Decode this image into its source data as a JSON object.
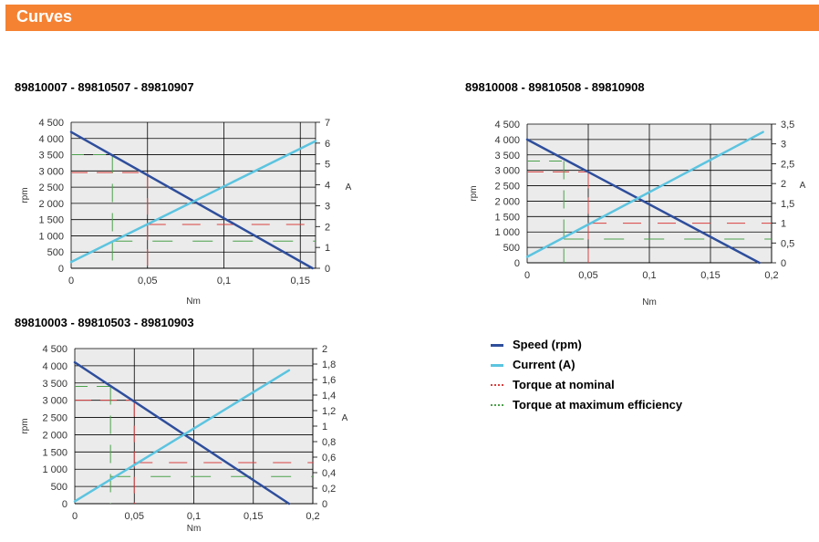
{
  "header": {
    "title": "Curves"
  },
  "colors": {
    "banner": "#F58232",
    "speed": "#2E4E9C",
    "current": "#5BC4E0",
    "nominal": "#D94040",
    "efficiency": "#4CA24C",
    "plot_bg": "#EBEBEB",
    "grid": "#000000"
  },
  "legend": {
    "items": [
      {
        "label": "Speed (rpm)",
        "color": "#2E4E9C",
        "style": "solid"
      },
      {
        "label": "Current (A)",
        "color": "#5BC4E0",
        "style": "solid"
      },
      {
        "label": "Torque at nominal",
        "color": "#D94040",
        "style": "dashed"
      },
      {
        "label": "Torque at maximum efficiency",
        "color": "#4CA24C",
        "style": "dashed"
      }
    ]
  },
  "chart_data": [
    {
      "type": "line",
      "title": "89810007 - 89810507 - 89810907",
      "xlabel": "Nm",
      "ylabel": "rpm",
      "y2label": "A",
      "xlim": [
        0,
        0.16
      ],
      "xticks": [
        0,
        0.05,
        0.1,
        0.15
      ],
      "xtick_labels": [
        "0",
        "0,05",
        "0,1",
        "0,15"
      ],
      "ylim": [
        0,
        4500
      ],
      "yticks": [
        0,
        500,
        1000,
        1500,
        2000,
        2500,
        3000,
        3500,
        4000,
        4500
      ],
      "ytick_labels": [
        "0",
        "500",
        "1 000",
        "1 500",
        "2 000",
        "2 500",
        "3 000",
        "3 500",
        "4 000",
        "4 500"
      ],
      "y2lim": [
        0,
        7
      ],
      "y2ticks": [
        0,
        1,
        2,
        3,
        4,
        5,
        6,
        7
      ],
      "y2tick_labels": [
        "0",
        "1",
        "2",
        "3",
        "4",
        "5",
        "6",
        "7"
      ],
      "grid": true,
      "series": [
        {
          "name": "Speed (rpm)",
          "axis": "left",
          "x": [
            0,
            0.158
          ],
          "y": [
            4200,
            0
          ]
        },
        {
          "name": "Current (A)",
          "axis": "right",
          "x": [
            0,
            0.16
          ],
          "y": [
            0.3,
            6.1
          ]
        }
      ],
      "nominal": {
        "torque": 0.05,
        "speed": 2950,
        "current": 2.1
      },
      "max_efficiency": {
        "torque": 0.027,
        "speed": 3500,
        "current": 1.3
      }
    },
    {
      "type": "line",
      "title": "89810008 - 89810508 - 89810908",
      "xlabel": "Nm",
      "ylabel": "rpm",
      "y2label": "A",
      "xlim": [
        0,
        0.2
      ],
      "xticks": [
        0,
        0.05,
        0.1,
        0.15,
        0.2
      ],
      "xtick_labels": [
        "0",
        "0,05",
        "0,1",
        "0,15",
        "0,2"
      ],
      "ylim": [
        0,
        4500
      ],
      "yticks": [
        0,
        500,
        1000,
        1500,
        2000,
        2500,
        3000,
        3500,
        4000,
        4500
      ],
      "ytick_labels": [
        "0",
        "500",
        "1 000",
        "1 500",
        "2 000",
        "2 500",
        "3 000",
        "3 500",
        "4 000",
        "4 500"
      ],
      "y2lim": [
        0,
        3.5
      ],
      "y2ticks": [
        0,
        0.5,
        1,
        1.5,
        2,
        2.5,
        3,
        3.5
      ],
      "y2tick_labels": [
        "0",
        "0,5",
        "1",
        "1,5",
        "2",
        "2,5",
        "3",
        "3,5"
      ],
      "grid": true,
      "series": [
        {
          "name": "Speed (rpm)",
          "axis": "left",
          "x": [
            0,
            0.19
          ],
          "y": [
            4000,
            0
          ]
        },
        {
          "name": "Current (A)",
          "axis": "right",
          "x": [
            0,
            0.193
          ],
          "y": [
            0.15,
            3.3
          ]
        }
      ],
      "nominal": {
        "torque": 0.05,
        "speed": 2950,
        "current": 1.0
      },
      "max_efficiency": {
        "torque": 0.03,
        "speed": 3300,
        "current": 0.6
      }
    },
    {
      "type": "line",
      "title": "89810003 - 89810503 - 89810903",
      "xlabel": "Nm",
      "ylabel": "rpm",
      "y2label": "A",
      "xlim": [
        0,
        0.2
      ],
      "xticks": [
        0,
        0.05,
        0.1,
        0.15,
        0.2
      ],
      "xtick_labels": [
        "0",
        "0,05",
        "0,1",
        "0,15",
        "0,2"
      ],
      "ylim": [
        0,
        4500
      ],
      "yticks": [
        0,
        500,
        1000,
        1500,
        2000,
        2500,
        3000,
        3500,
        4000,
        4500
      ],
      "ytick_labels": [
        "0",
        "500",
        "1 000",
        "1 500",
        "2 000",
        "2 500",
        "3 000",
        "3 500",
        "4 000",
        "4 500"
      ],
      "y2lim": [
        0,
        2
      ],
      "y2ticks": [
        0,
        0.2,
        0.4,
        0.6,
        0.8,
        1,
        1.2,
        1.4,
        1.6,
        1.8,
        2
      ],
      "y2tick_labels": [
        "0",
        "0,2",
        "0,4",
        "0,6",
        "0,8",
        "1",
        "1,2",
        "1,4",
        "1,6",
        "1,8",
        "2"
      ],
      "grid": true,
      "series": [
        {
          "name": "Speed (rpm)",
          "axis": "left",
          "x": [
            0,
            0.18
          ],
          "y": [
            4100,
            0
          ]
        },
        {
          "name": "Current (A)",
          "axis": "right",
          "x": [
            0,
            0.18
          ],
          "y": [
            0.03,
            1.72
          ]
        }
      ],
      "nominal": {
        "torque": 0.05,
        "speed": 3000,
        "current": 0.53
      },
      "max_efficiency": {
        "torque": 0.03,
        "speed": 3400,
        "current": 0.35
      }
    }
  ]
}
